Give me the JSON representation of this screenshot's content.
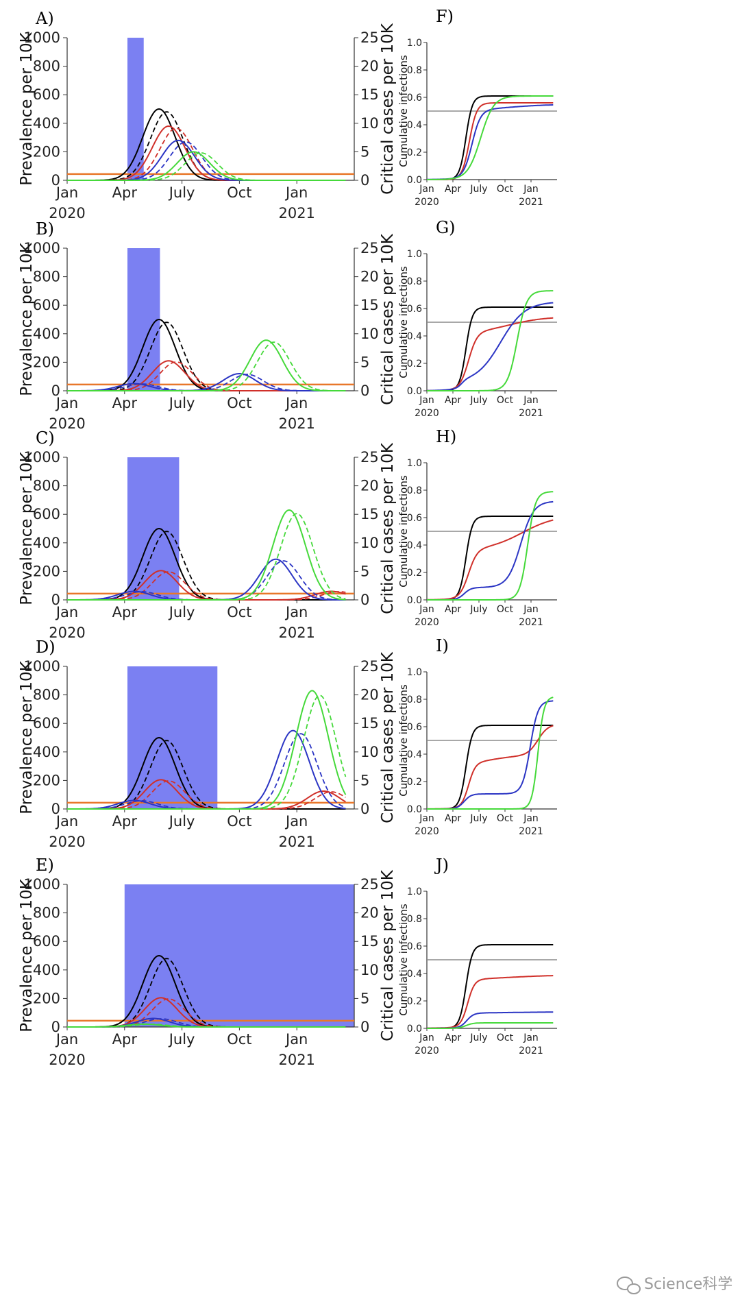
{
  "chart_data": [
    {
      "panel": "A)",
      "type": "line",
      "ylabel": "Prevalence per 10K",
      "y2label": "Critical cases per 10K",
      "ylim": [
        0,
        1000
      ],
      "y2lim": [
        0,
        25
      ],
      "yticks": [
        "0",
        "200",
        "400",
        "600",
        "800",
        "1000"
      ],
      "y2ticks": [
        "0",
        "5",
        "10",
        "15",
        "20",
        "25"
      ],
      "xticks": [
        "Jan",
        "Apr",
        "July",
        "Oct",
        "Jan"
      ],
      "xyears": [
        "2020",
        "2021"
      ],
      "intervention_months": [
        3.15,
        4.0
      ],
      "critical_threshold_per10k": 1.1,
      "series": [
        {
          "color": "#000000",
          "peaks": [
            {
              "t": 4.8,
              "h": 500
            }
          ]
        },
        {
          "color": "#d0302a",
          "peaks": [
            {
              "t": 5.3,
              "h": 380
            }
          ]
        },
        {
          "color": "#2b35c4",
          "peaks": [
            {
              "t": 5.8,
              "h": 280
            }
          ]
        },
        {
          "color": "#45d93a",
          "peaks": [
            {
              "t": 6.6,
              "h": 200
            }
          ]
        }
      ]
    },
    {
      "panel": "B)",
      "type": "line",
      "ylabel": "Prevalence per 10K",
      "y2label": "Critical cases per 10K",
      "ylim": [
        0,
        1000
      ],
      "y2lim": [
        0,
        25
      ],
      "yticks": [
        "0",
        "200",
        "400",
        "600",
        "800",
        "1000"
      ],
      "y2ticks": [
        "0",
        "5",
        "10",
        "15",
        "20",
        "25"
      ],
      "xticks": [
        "Jan",
        "Apr",
        "July",
        "Oct",
        "Jan"
      ],
      "xyears": [
        "2020",
        "2021"
      ],
      "intervention_months": [
        3.15,
        4.85
      ],
      "critical_threshold_per10k": 1.1,
      "series": [
        {
          "color": "#000000",
          "peaks": [
            {
              "t": 4.8,
              "h": 500
            }
          ]
        },
        {
          "color": "#d0302a",
          "peaks": [
            {
              "t": 5.3,
              "h": 210
            }
          ]
        },
        {
          "color": "#2b35c4",
          "peaks": [
            {
              "t": 3.5,
              "h": 50
            },
            {
              "t": 9.0,
              "h": 120
            }
          ]
        },
        {
          "color": "#45d93a",
          "peaks": [
            {
              "t": 10.4,
              "h": 355
            }
          ]
        }
      ]
    },
    {
      "panel": "C)",
      "type": "line",
      "ylabel": "Prevalence per 10K",
      "y2label": "Critical cases per 10K",
      "ylim": [
        0,
        1000
      ],
      "y2lim": [
        0,
        25
      ],
      "yticks": [
        "0",
        "200",
        "400",
        "600",
        "800",
        "1000"
      ],
      "y2ticks": [
        "0",
        "5",
        "10",
        "15",
        "20",
        "25"
      ],
      "xticks": [
        "Jan",
        "Apr",
        "July",
        "Oct",
        "Jan"
      ],
      "xyears": [
        "2020",
        "2021"
      ],
      "intervention_months": [
        3.15,
        5.85
      ],
      "critical_threshold_per10k": 1.1,
      "series": [
        {
          "color": "#000000",
          "peaks": [
            {
              "t": 4.8,
              "h": 500
            }
          ]
        },
        {
          "color": "#d0302a",
          "peaks": [
            {
              "t": 4.9,
              "h": 205
            },
            {
              "t": 13.8,
              "h": 60
            }
          ]
        },
        {
          "color": "#2b35c4",
          "peaks": [
            {
              "t": 3.5,
              "h": 60
            },
            {
              "t": 10.9,
              "h": 285
            }
          ]
        },
        {
          "color": "#45d93a",
          "peaks": [
            {
              "t": 11.6,
              "h": 630
            }
          ]
        }
      ]
    },
    {
      "panel": "D)",
      "type": "line",
      "ylabel": "Prevalence per 10K",
      "y2label": "Critical cases per 10K",
      "ylim": [
        0,
        1000
      ],
      "y2lim": [
        0,
        25
      ],
      "yticks": [
        "0",
        "200",
        "400",
        "600",
        "800",
        "1000"
      ],
      "y2ticks": [
        "0",
        "5",
        "10",
        "15",
        "20",
        "25"
      ],
      "xticks": [
        "Jan",
        "Apr",
        "July",
        "Oct",
        "Jan"
      ],
      "xyears": [
        "2020",
        "2021"
      ],
      "intervention_months": [
        3.15,
        7.85
      ],
      "critical_threshold_per10k": 1.1,
      "series": [
        {
          "color": "#000000",
          "peaks": [
            {
              "t": 4.8,
              "h": 500
            }
          ]
        },
        {
          "color": "#d0302a",
          "peaks": [
            {
              "t": 4.9,
              "h": 205
            },
            {
              "t": 13.4,
              "h": 125
            }
          ]
        },
        {
          "color": "#2b35c4",
          "peaks": [
            {
              "t": 3.5,
              "h": 60
            },
            {
              "t": 11.8,
              "h": 550
            }
          ]
        },
        {
          "color": "#45d93a",
          "peaks": [
            {
              "t": 12.8,
              "h": 830
            }
          ]
        }
      ]
    },
    {
      "panel": "E)",
      "type": "line",
      "ylabel": "Prevalence per 10K",
      "y2label": "Critical cases per 10K",
      "ylim": [
        0,
        1000
      ],
      "y2lim": [
        0,
        25
      ],
      "yticks": [
        "0",
        "200",
        "400",
        "600",
        "800",
        "1000"
      ],
      "y2ticks": [
        "0",
        "5",
        "10",
        "15",
        "20",
        "25"
      ],
      "xticks": [
        "Jan",
        "Apr",
        "July",
        "Oct",
        "Jan"
      ],
      "xyears": [
        "2020",
        "2021"
      ],
      "intervention_months": [
        3.0,
        15.0
      ],
      "critical_threshold_per10k": 1.1,
      "series": [
        {
          "color": "#000000",
          "peaks": [
            {
              "t": 4.8,
              "h": 500
            }
          ]
        },
        {
          "color": "#d0302a",
          "peaks": [
            {
              "t": 4.9,
              "h": 205
            }
          ]
        },
        {
          "color": "#2b35c4",
          "peaks": [
            {
              "t": 4.5,
              "h": 60
            }
          ]
        },
        {
          "color": "#45d93a",
          "peaks": [
            {
              "t": 4.0,
              "h": 20
            }
          ]
        }
      ]
    },
    {
      "panel": "F)",
      "type": "line",
      "ylabel": "Cumulative infections",
      "ylim": [
        0,
        1.0
      ],
      "yticks": [
        "0.0",
        "0.2",
        "0.4",
        "0.6",
        "0.8",
        "1.0"
      ],
      "xticks": [
        "Jan",
        "Apr",
        "July",
        "Oct",
        "Jan"
      ],
      "xyears": [
        "2020",
        "2021"
      ],
      "reference_line": 0.5,
      "series": [
        {
          "color": "#000000",
          "steps": [
            {
              "c": 4.5,
              "s": 0.37,
              "a": 0.61
            }
          ]
        },
        {
          "color": "#d0302a",
          "steps": [
            {
              "c": 4.9,
              "s": 0.42,
              "a": 0.56
            }
          ]
        },
        {
          "color": "#2b35c4",
          "steps": [
            {
              "c": 5.2,
              "s": 0.5,
              "a": 0.5
            },
            {
              "c": 9.0,
              "s": 2.5,
              "a": 0.05
            }
          ]
        },
        {
          "color": "#45d93a",
          "steps": [
            {
              "c": 6.2,
              "s": 0.75,
              "a": 0.61
            }
          ]
        }
      ]
    },
    {
      "panel": "G)",
      "type": "line",
      "ylabel": "Cumulative infections",
      "ylim": [
        0,
        1.0
      ],
      "yticks": [
        "0.0",
        "0.2",
        "0.4",
        "0.6",
        "0.8",
        "1.0"
      ],
      "xticks": [
        "Jan",
        "Apr",
        "July",
        "Oct",
        "Jan"
      ],
      "xyears": [
        "2020",
        "2021"
      ],
      "reference_line": 0.5,
      "series": [
        {
          "color": "#000000",
          "steps": [
            {
              "c": 4.5,
              "s": 0.37,
              "a": 0.61
            }
          ]
        },
        {
          "color": "#d0302a",
          "steps": [
            {
              "c": 4.8,
              "s": 0.5,
              "a": 0.42
            },
            {
              "c": 9.5,
              "s": 2.0,
              "a": 0.12
            }
          ]
        },
        {
          "color": "#2b35c4",
          "steps": [
            {
              "c": 4.0,
              "s": 0.3,
              "a": 0.06
            },
            {
              "c": 8.5,
              "s": 1.4,
              "a": 0.59
            }
          ]
        },
        {
          "color": "#45d93a",
          "steps": [
            {
              "c": 10.4,
              "s": 0.55,
              "a": 0.73
            }
          ]
        }
      ]
    },
    {
      "panel": "H)",
      "type": "line",
      "ylabel": "Cumulative infections",
      "ylim": [
        0,
        1.0
      ],
      "yticks": [
        "0.0",
        "0.2",
        "0.4",
        "0.6",
        "0.8",
        "1.0"
      ],
      "xticks": [
        "Jan",
        "Apr",
        "July",
        "Oct",
        "Jan"
      ],
      "xyears": [
        "2020",
        "2021"
      ],
      "reference_line": 0.5,
      "series": [
        {
          "color": "#000000",
          "steps": [
            {
              "c": 4.5,
              "s": 0.37,
              "a": 0.61
            }
          ]
        },
        {
          "color": "#d0302a",
          "steps": [
            {
              "c": 4.8,
              "s": 0.5,
              "a": 0.36
            },
            {
              "c": 11.0,
              "s": 2.0,
              "a": 0.26
            }
          ]
        },
        {
          "color": "#2b35c4",
          "steps": [
            {
              "c": 4.3,
              "s": 0.4,
              "a": 0.09
            },
            {
              "c": 10.8,
              "s": 0.75,
              "a": 0.63
            }
          ]
        },
        {
          "color": "#45d93a",
          "steps": [
            {
              "c": 11.6,
              "s": 0.45,
              "a": 0.79
            }
          ]
        }
      ]
    },
    {
      "panel": "I)",
      "type": "line",
      "ylabel": "Cumulative infections",
      "ylim": [
        0,
        1.0
      ],
      "yticks": [
        "0.0",
        "0.2",
        "0.4",
        "0.6",
        "0.8",
        "1.0"
      ],
      "xticks": [
        "Jan",
        "Apr",
        "July",
        "Oct",
        "Jan"
      ],
      "xyears": [
        "2020",
        "2021"
      ],
      "reference_line": 0.5,
      "series": [
        {
          "color": "#000000",
          "steps": [
            {
              "c": 4.5,
              "s": 0.37,
              "a": 0.61
            }
          ]
        },
        {
          "color": "#d0302a",
          "steps": [
            {
              "c": 4.8,
              "s": 0.4,
              "a": 0.33
            },
            {
              "c": 7.5,
              "s": 1.5,
              "a": 0.06
            },
            {
              "c": 12.8,
              "s": 0.6,
              "a": 0.23
            }
          ]
        },
        {
          "color": "#2b35c4",
          "steps": [
            {
              "c": 4.3,
              "s": 0.4,
              "a": 0.11
            },
            {
              "c": 11.9,
              "s": 0.45,
              "a": 0.68
            }
          ]
        },
        {
          "color": "#45d93a",
          "steps": [
            {
              "c": 12.8,
              "s": 0.35,
              "a": 0.82
            }
          ]
        }
      ]
    },
    {
      "panel": "J)",
      "type": "line",
      "ylabel": "Cumulative infections",
      "ylim": [
        0,
        1.0
      ],
      "yticks": [
        "0.0",
        "0.2",
        "0.4",
        "0.6",
        "0.8",
        "1.0"
      ],
      "xticks": [
        "Jan",
        "Apr",
        "July",
        "Oct",
        "Jan"
      ],
      "xyears": [
        "2020",
        "2021"
      ],
      "reference_line": 0.5,
      "series": [
        {
          "color": "#000000",
          "steps": [
            {
              "c": 4.5,
              "s": 0.37,
              "a": 0.61
            }
          ]
        },
        {
          "color": "#d0302a",
          "steps": [
            {
              "c": 4.7,
              "s": 0.4,
              "a": 0.35
            },
            {
              "c": 9.0,
              "s": 3.0,
              "a": 0.04
            }
          ]
        },
        {
          "color": "#2b35c4",
          "steps": [
            {
              "c": 4.6,
              "s": 0.4,
              "a": 0.11
            },
            {
              "c": 9.0,
              "s": 3.0,
              "a": 0.01
            }
          ]
        },
        {
          "color": "#45d93a",
          "steps": [
            {
              "c": 4.5,
              "s": 0.4,
              "a": 0.04
            }
          ]
        }
      ]
    }
  ],
  "styles": {
    "intervention_color": "#7b80f2",
    "threshold_color": "#e8772a",
    "reference_line_color": "#8c8c8c"
  },
  "watermark": {
    "text": "Science科学",
    "icon": "wechat-icon"
  }
}
